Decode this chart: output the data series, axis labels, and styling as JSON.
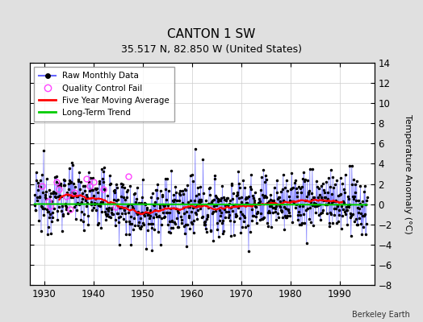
{
  "title": "CANTON 1 SW",
  "subtitle": "35.517 N, 82.850 W (United States)",
  "ylabel": "Temperature Anomaly (°C)",
  "watermark": "Berkeley Earth",
  "xlim": [
    1927,
    1997
  ],
  "ylim": [
    -8,
    14
  ],
  "yticks": [
    -8,
    -6,
    -4,
    -2,
    0,
    2,
    4,
    6,
    8,
    10,
    12,
    14
  ],
  "xticks": [
    1930,
    1940,
    1950,
    1960,
    1970,
    1980,
    1990
  ],
  "bg_color": "#e0e0e0",
  "plot_bg_color": "#ffffff",
  "raw_line_color": "#6666ff",
  "raw_dot_color": "#000000",
  "ma_color": "#ff0000",
  "trend_color": "#00cc00",
  "qc_color": "#ff44ff",
  "title_fontsize": 11,
  "subtitle_fontsize": 9,
  "tick_fontsize": 8.5,
  "ylabel_fontsize": 8
}
